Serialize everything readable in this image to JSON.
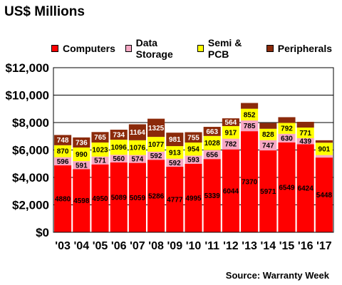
{
  "title": "US$ Millions",
  "source": "Source: Warranty Week",
  "chart_data": {
    "type": "bar",
    "stacked": true,
    "categories": [
      "'03",
      "'04",
      "'05",
      "'06",
      "'07",
      "'08",
      "'09",
      "'10",
      "'11",
      "'12",
      "'13",
      "'14",
      "'15",
      "'16",
      "'17"
    ],
    "series": [
      {
        "name": "Computers",
        "color": "#ff0000",
        "label_color": "#000000",
        "values": [
          4880,
          4598,
          4950,
          5089,
          5059,
          5286,
          4777,
          4995,
          5339,
          6044,
          7370,
          5971,
          6549,
          6424,
          5448
        ]
      },
      {
        "name": "Data Storage",
        "color": "#f7a8c4",
        "label_color": "#000000",
        "values": [
          596,
          591,
          571,
          560,
          574,
          592,
          592,
          593,
          656,
          782,
          785,
          747,
          630,
          439,
          null
        ]
      },
      {
        "name": "Semi & PCB",
        "color": "#ffff00",
        "label_color": "#000000",
        "values": [
          870,
          990,
          1023,
          1096,
          1076,
          1077,
          913,
          954,
          1028,
          917,
          852,
          828,
          792,
          771,
          901
        ]
      },
      {
        "name": "Peripherals",
        "color": "#8b2a0a",
        "label_color": "#ffffff",
        "values": [
          748,
          736,
          765,
          734,
          1164,
          1325,
          981,
          755,
          663,
          564,
          null,
          null,
          null,
          null,
          null
        ]
      }
    ],
    "hidden_segment_values": {
      "Data Storage": [
        null,
        null,
        null,
        null,
        null,
        null,
        null,
        null,
        null,
        null,
        null,
        null,
        null,
        null,
        180
      ],
      "Peripherals": [
        null,
        null,
        null,
        null,
        null,
        null,
        null,
        null,
        null,
        null,
        420,
        420,
        420,
        420,
        180
      ]
    },
    "ylim": [
      0,
      12000
    ],
    "yticks": [
      0,
      2000,
      4000,
      6000,
      8000,
      10000,
      12000
    ],
    "ytick_labels": [
      "$0",
      "$2,000",
      "$4,000",
      "$6,000",
      "$8,000",
      "$10,000",
      "$12,000"
    ],
    "grid": true,
    "legend_position": "top"
  }
}
